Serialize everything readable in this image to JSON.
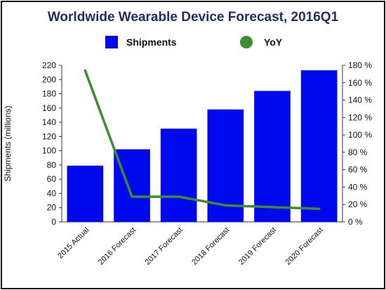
{
  "chart_data": {
    "type": "bar",
    "title": "Worldwide Wearable Device Forecast, 2016Q1",
    "ylabel": "Shipments (millions)",
    "categories": [
      "2015 Actual",
      "2016 Forecast",
      "2017 Forecast",
      "2018 Forecast",
      "2019 Forecast",
      "2020 Forecast"
    ],
    "series": [
      {
        "name": "Shipments",
        "type": "bar",
        "axis": "left",
        "color": "#0008ee",
        "values": [
          79,
          102,
          131,
          158,
          184,
          213
        ]
      },
      {
        "name": "YoY",
        "type": "line",
        "axis": "right",
        "color": "#3c8d2f",
        "values": [
          174,
          29,
          29,
          19,
          17,
          15
        ]
      }
    ],
    "ylim": [
      0,
      220
    ],
    "yticks": [
      "0",
      "20",
      "40",
      "60",
      "80",
      "100",
      "120",
      "140",
      "160",
      "180",
      "200",
      "220"
    ],
    "y2lim": [
      0,
      180
    ],
    "y2ticks": [
      "0 %",
      "20 %",
      "40 %",
      "60 %",
      "80 %",
      "100 %",
      "120 %",
      "140 %",
      "160 %",
      "180 %"
    ],
    "legend": "top-center",
    "grid": false
  }
}
